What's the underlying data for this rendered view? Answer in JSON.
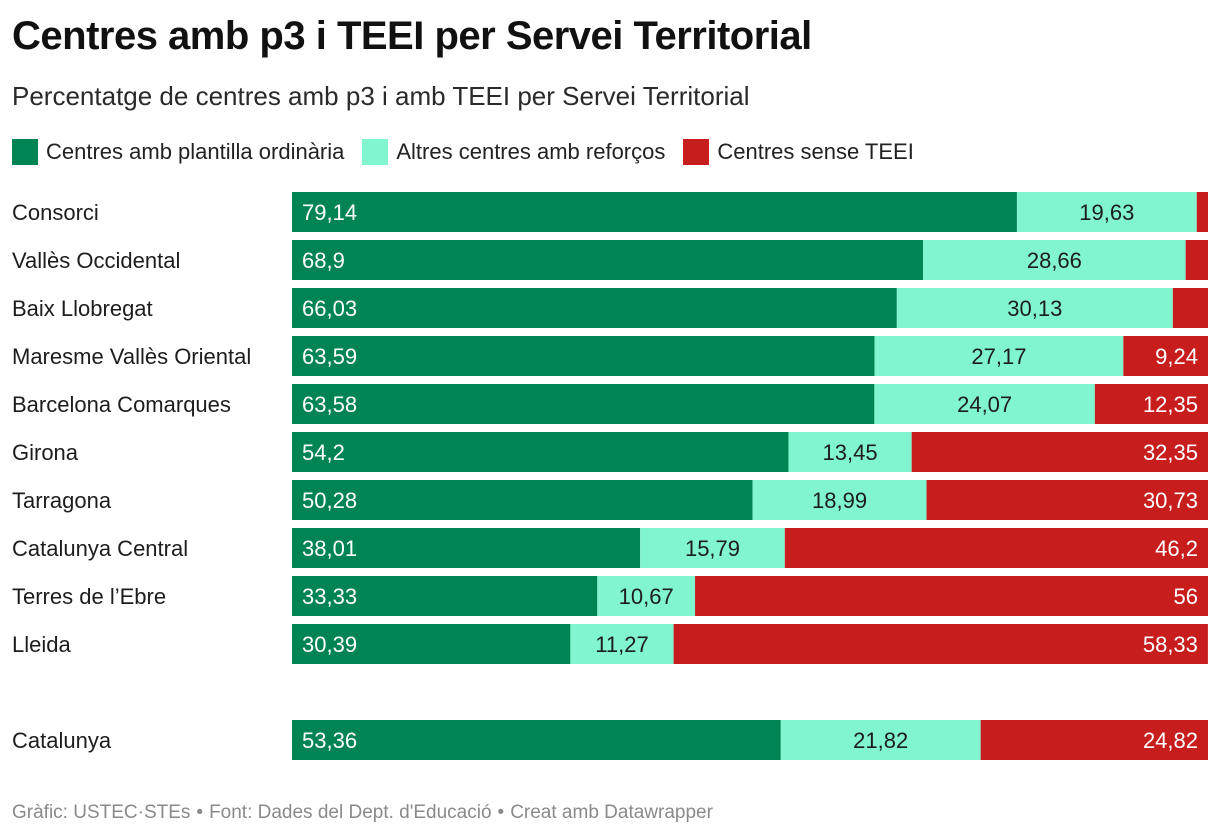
{
  "title": "Centres amb p3 i TEEI per Servei Territorial",
  "subtitle": "Percentatge de centres amb p3 i amb TEEI per Servei Territorial",
  "legend": [
    {
      "label": "Centres amb plantilla ordinària",
      "color": "#008454"
    },
    {
      "label": "Altres centres amb reforços",
      "color": "#81f5cf"
    },
    {
      "label": "Centres sense TEEI",
      "color": "#c71e1d"
    }
  ],
  "footer": {
    "source_credit": "Gràfic: USTEC·STEs",
    "data_source": "Font: Dades del Dept. d'Educació",
    "tool": "Creat amb Datawrapper"
  },
  "chart_data": {
    "type": "bar",
    "orientation": "horizontal",
    "stacked": true,
    "xlim": [
      0,
      100
    ],
    "grid": false,
    "legend_position": "top-left",
    "categories": [
      "Consorci",
      "Vallès Occidental",
      "Baix Llobregat",
      "Maresme Vallès Oriental",
      "Barcelona Comarques",
      "Girona",
      "Tarragona",
      "Catalunya Central",
      "Terres de l’Ebre",
      "Lleida",
      "Catalunya"
    ],
    "series": [
      {
        "name": "Centres amb plantilla ordinària",
        "color": "#008454",
        "values": [
          79.14,
          68.9,
          66.03,
          63.59,
          63.58,
          54.2,
          50.28,
          38.01,
          33.33,
          30.39,
          53.36
        ],
        "labels": [
          "79,14",
          "68,9",
          "66,03",
          "63,59",
          "63,58",
          "54,2",
          "50,28",
          "38,01",
          "33,33",
          "30,39",
          "53,36"
        ]
      },
      {
        "name": "Altres centres amb reforços",
        "color": "#81f5cf",
        "values": [
          19.63,
          28.66,
          30.13,
          27.17,
          24.07,
          13.45,
          18.99,
          15.79,
          10.67,
          11.27,
          21.82
        ],
        "labels": [
          "19,63",
          "28,66",
          "30,13",
          "27,17",
          "24,07",
          "13,45",
          "18,99",
          "15,79",
          "10,67",
          "11,27",
          "21,82"
        ]
      },
      {
        "name": "Centres sense TEEI",
        "color": "#c71e1d",
        "values": [
          1.23,
          2.44,
          3.84,
          9.24,
          12.35,
          32.35,
          30.73,
          46.2,
          56,
          58.33,
          24.82
        ],
        "labels": [
          "",
          "",
          "",
          "9,24",
          "12,35",
          "32,35",
          "30,73",
          "46,2",
          "56",
          "58,33",
          "24,82"
        ]
      }
    ]
  }
}
